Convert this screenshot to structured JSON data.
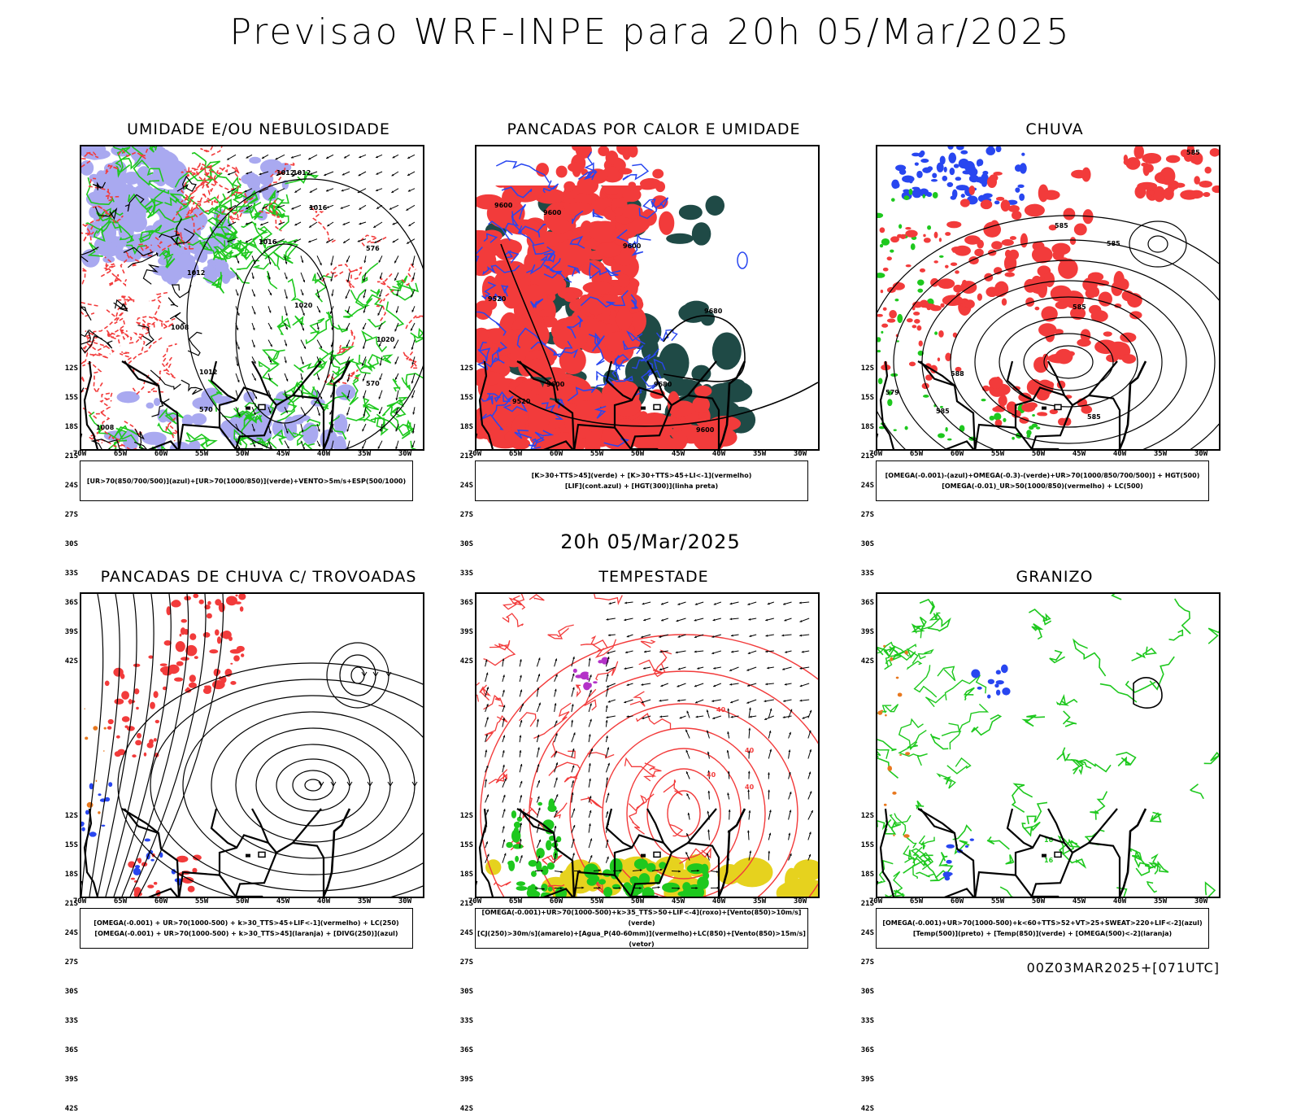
{
  "header": {
    "title": "Previsao WRF-INPE  para 20h 05/Mar/2025",
    "subtitle": "20h 05/Mar/2025",
    "footer": "00Z03MAR2025+[071UTC]"
  },
  "axes": {
    "lat_labels": [
      "12S",
      "15S",
      "18S",
      "21S",
      "24S",
      "27S",
      "30S",
      "33S",
      "36S",
      "39S",
      "42S"
    ],
    "lon_labels": [
      "70W",
      "65W",
      "60W",
      "55W",
      "50W",
      "45W",
      "40W",
      "35W",
      "30W"
    ]
  },
  "panels": [
    {
      "title": "UMIDADE E/OU NEBULOSIDADE",
      "legend": [
        "[UR>70(850/700/500)](azul)+[UR>70(1000/850)](verde)+VENTO>5m/s+ESP(500/1000)"
      ],
      "contour_labels": [
        "1012",
        "1012",
        "1016",
        "1016",
        "1012",
        "1020",
        "1020",
        "1008",
        "1012",
        "1008",
        "576",
        "570",
        "570"
      ]
    },
    {
      "title": "PANCADAS POR CALOR E UMIDADE",
      "legend": [
        "[K>30+TTS>45](verde) + [K>30+TTS>45+LI<-1](vermelho)",
        "[LIF](cont.azul) + [HGT(300)](linha preta)"
      ],
      "contour_labels": [
        "9600",
        "9600",
        "9520",
        "9600",
        "9680",
        "9680",
        "9600",
        "9520",
        "9600"
      ]
    },
    {
      "title": "CHUVA",
      "legend": [
        "[OMEGA(-0.001)-(azul)+OMEGA(-0.3)-(verde)+UR>70(1000/850/700/500)] + HGT(500)",
        "[OMEGA(-0.01)_UR>50(1000/850)(vermelho) + LC(500)"
      ],
      "contour_labels": [
        "585",
        "585",
        "585",
        "585",
        "588",
        "579",
        "585",
        "585"
      ]
    },
    {
      "title": "PANCADAS DE CHUVA C/ TROVOADAS",
      "legend": [
        "[OMEGA(-0.001) + UR>70(1000-500) + k>30_TTS>45+LIF<-1](vermelho) + LC(250)",
        "[OMEGA(-0.001) + UR>70(1000-500) + k>30_TTS>45](laranja) + [DIVG(250)](azul)"
      ],
      "contour_labels": []
    },
    {
      "title": "TEMPESTADE",
      "legend": [
        "[OMEGA(-0.001)+UR>70(1000-500)+k>35_TTS>50+LIF<-4](roxo)+[Vento(850)>10m/s](verde)",
        "[CJ(250)>30m/s](amarelo)+[Agua_P(40-60mm)](vermelho)+LC(850)+[Vento(850)>15m/s](vetor)"
      ],
      "contour_labels": [
        "40",
        "40",
        "40",
        "40"
      ]
    },
    {
      "title": "GRANIZO",
      "legend": [
        "[OMEGA(-0.001)+UR>70(1000-500)+k<60+TTS>52+VT>25+SWEAT>220+LIF<-2](azul)",
        "[Temp(500)](preto) + [Temp(850)](verde) + [OMEGA(500)<-2](laranja)"
      ],
      "contour_labels": [
        "16",
        "16"
      ]
    }
  ],
  "colors": {
    "red": "#f23b3b",
    "green": "#1ec81e",
    "blue": "#2846f0",
    "lavender": "#a9a9f0",
    "darkteal": "#1f4a46",
    "orange": "#e8781e",
    "yellow": "#e6d21e",
    "purple": "#b432c8"
  }
}
